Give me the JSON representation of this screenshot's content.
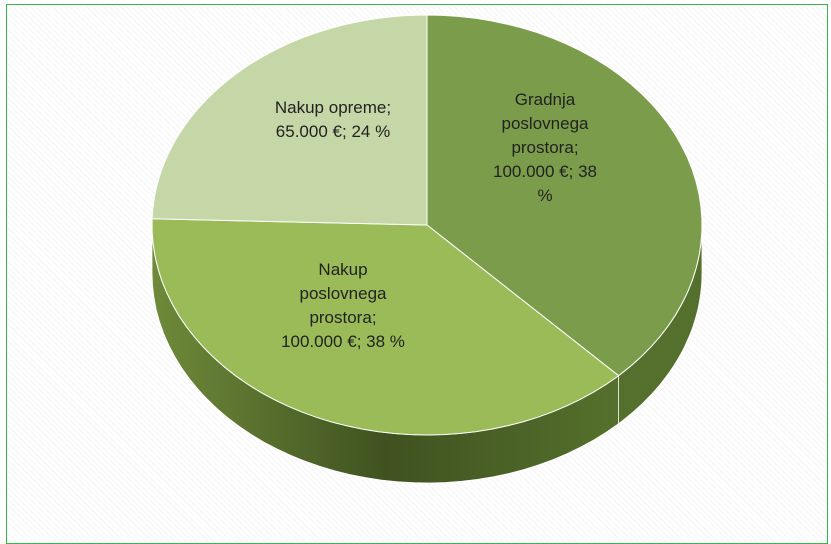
{
  "chart_data": {
    "type": "pie3d",
    "categories": [
      "Gradnja poslovnega prostora",
      "Nakup poslovnega prostora",
      "Nakup opreme"
    ],
    "values": [
      100000,
      100000,
      65000
    ],
    "value_labels": [
      "100.000 €",
      "100.000 €",
      "65.000 €"
    ],
    "percents": [
      38,
      38,
      24
    ],
    "percent_labels": [
      "38 %",
      "38 %",
      "24 %"
    ],
    "separator": ";",
    "colors": [
      "#7b9c4a",
      "#9bbb59",
      "#c5d7a6"
    ],
    "side_colors": [
      "#55702c",
      "#4f6228",
      "#7f9660"
    ]
  }
}
